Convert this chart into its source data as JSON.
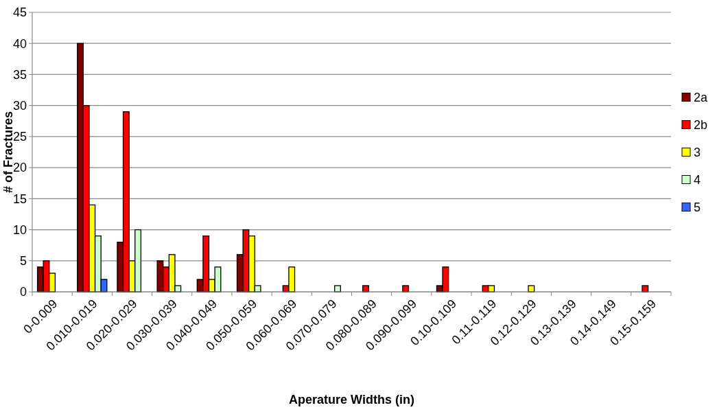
{
  "chart_data": {
    "type": "bar",
    "xlabel": "Aperature Widths (in)",
    "ylabel": "# of Fractures",
    "categories": [
      "0-0.009",
      "0.010-0.019",
      "0.020-0.029",
      "0.030-0.039",
      "0.040-0.049",
      "0.050-0.059",
      "0.060-0.069",
      "0.070-0.079",
      "0.080-0.089",
      "0.090-0.099",
      "0.10-0.109",
      "0.11-0.119",
      "0.12-0.129",
      "0.13-0.139",
      "0.14-0.149",
      "0.15-0.159"
    ],
    "series": [
      {
        "name": "2a",
        "color": "#800000",
        "values": [
          4,
          40,
          8,
          5,
          2,
          6,
          0,
          0,
          0,
          0,
          1,
          0,
          0,
          0,
          0,
          0
        ]
      },
      {
        "name": "2b",
        "color": "#ff0000",
        "values": [
          5,
          30,
          29,
          4,
          9,
          10,
          1,
          0,
          1,
          1,
          4,
          1,
          0,
          0,
          0,
          1
        ]
      },
      {
        "name": "3",
        "color": "#ffff00",
        "values": [
          3,
          14,
          5,
          6,
          2,
          9,
          4,
          0,
          0,
          0,
          0,
          1,
          1,
          0,
          0,
          0
        ]
      },
      {
        "name": "4",
        "color": "#ccffcc",
        "values": [
          0,
          9,
          10,
          1,
          4,
          1,
          0,
          1,
          0,
          0,
          0,
          0,
          0,
          0,
          0,
          0
        ]
      },
      {
        "name": "5",
        "color": "#3366ff",
        "values": [
          0,
          2,
          0,
          0,
          0,
          0,
          0,
          0,
          0,
          0,
          0,
          0,
          0,
          0,
          0,
          0
        ]
      }
    ],
    "ylim": [
      0,
      45
    ],
    "yticks": [
      0,
      5,
      10,
      15,
      20,
      25,
      30,
      35,
      40,
      45
    ],
    "grid": "y",
    "legend": "right"
  }
}
